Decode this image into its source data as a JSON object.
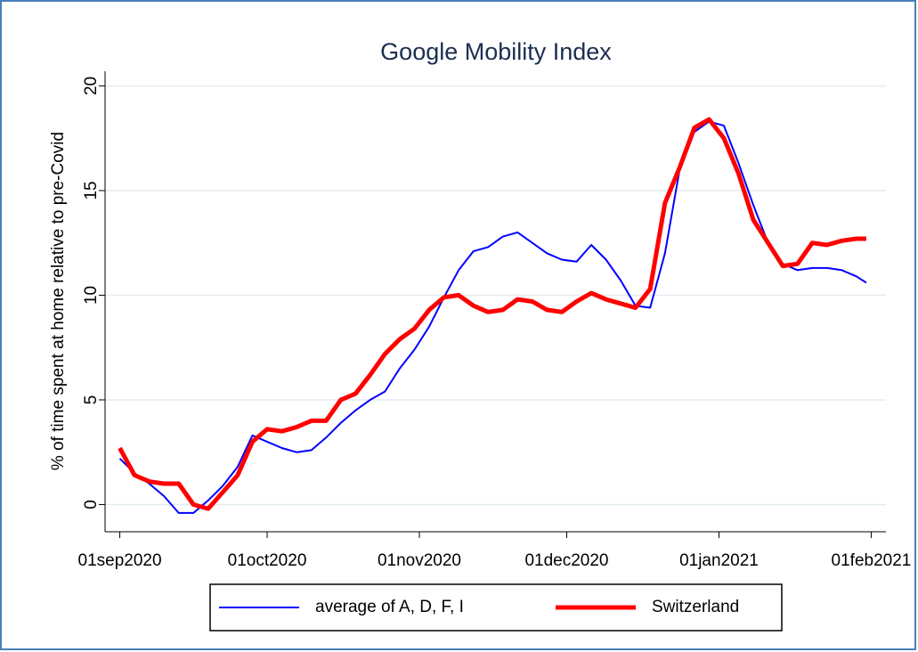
{
  "chart_data": {
    "type": "line",
    "title": "Google Mobility Index",
    "y_label": "% of time spent at home relative to pre-Covid",
    "x": [
      "2020-09-01",
      "2020-09-04",
      "2020-09-07",
      "2020-09-10",
      "2020-09-13",
      "2020-09-16",
      "2020-09-19",
      "2020-09-22",
      "2020-09-25",
      "2020-09-28",
      "2020-10-01",
      "2020-10-04",
      "2020-10-07",
      "2020-10-10",
      "2020-10-13",
      "2020-10-16",
      "2020-10-19",
      "2020-10-22",
      "2020-10-25",
      "2020-10-28",
      "2020-10-31",
      "2020-11-03",
      "2020-11-06",
      "2020-11-09",
      "2020-11-12",
      "2020-11-15",
      "2020-11-18",
      "2020-11-21",
      "2020-11-24",
      "2020-11-27",
      "2020-11-30",
      "2020-12-03",
      "2020-12-06",
      "2020-12-09",
      "2020-12-12",
      "2020-12-15",
      "2020-12-18",
      "2020-12-21",
      "2020-12-24",
      "2020-12-27",
      "2020-12-30",
      "2021-01-02",
      "2021-01-05",
      "2021-01-08",
      "2021-01-11",
      "2021-01-14",
      "2021-01-17",
      "2021-01-20",
      "2021-01-23",
      "2021-01-26",
      "2021-01-29",
      "2021-01-31"
    ],
    "series": [
      {
        "name": "average of A, D, F, I",
        "color": "#0000ff",
        "width": 2,
        "values": [
          2.2,
          1.5,
          1.0,
          0.4,
          -0.4,
          -0.4,
          0.2,
          0.9,
          1.8,
          3.3,
          3.0,
          2.7,
          2.5,
          2.6,
          3.2,
          3.9,
          4.5,
          5.0,
          5.4,
          6.5,
          7.4,
          8.5,
          9.9,
          11.2,
          12.1,
          12.3,
          12.8,
          13.0,
          12.5,
          12.0,
          11.7,
          11.6,
          12.4,
          11.7,
          10.7,
          9.5,
          9.4,
          12.0,
          16.0,
          17.8,
          18.3,
          18.1,
          16.3,
          14.3,
          12.5,
          11.5,
          11.2,
          11.3,
          11.3,
          11.2,
          10.9,
          10.6
        ]
      },
      {
        "name": "Switzerland",
        "color": "#ff0000",
        "width": 5,
        "values": [
          2.7,
          1.4,
          1.1,
          1.0,
          1.0,
          0.0,
          -0.2,
          0.6,
          1.4,
          3.0,
          3.6,
          3.5,
          3.7,
          4.0,
          4.0,
          5.0,
          5.3,
          6.2,
          7.2,
          7.9,
          8.4,
          9.3,
          9.9,
          10.0,
          9.5,
          9.2,
          9.3,
          9.8,
          9.7,
          9.3,
          9.2,
          9.7,
          10.1,
          9.8,
          9.6,
          9.4,
          10.3,
          14.4,
          16.1,
          18.0,
          18.4,
          17.5,
          15.8,
          13.6,
          12.5,
          11.4,
          11.5,
          12.5,
          12.4,
          12.6,
          12.7,
          12.7
        ]
      }
    ],
    "xlim": [
      "2020-08-29",
      "2021-02-04"
    ],
    "xticks": [
      {
        "value": "2020-09-01",
        "label": "01sep2020"
      },
      {
        "value": "2020-10-01",
        "label": "01oct2020"
      },
      {
        "value": "2020-11-01",
        "label": "01nov2020"
      },
      {
        "value": "2020-12-01",
        "label": "01dec2020"
      },
      {
        "value": "2021-01-01",
        "label": "01jan2021"
      },
      {
        "value": "2021-02-01",
        "label": "01feb2021"
      }
    ],
    "ylim": [
      -1.3,
      20.7
    ],
    "yticks": [
      0,
      5,
      10,
      15,
      20
    ],
    "grid": true
  }
}
